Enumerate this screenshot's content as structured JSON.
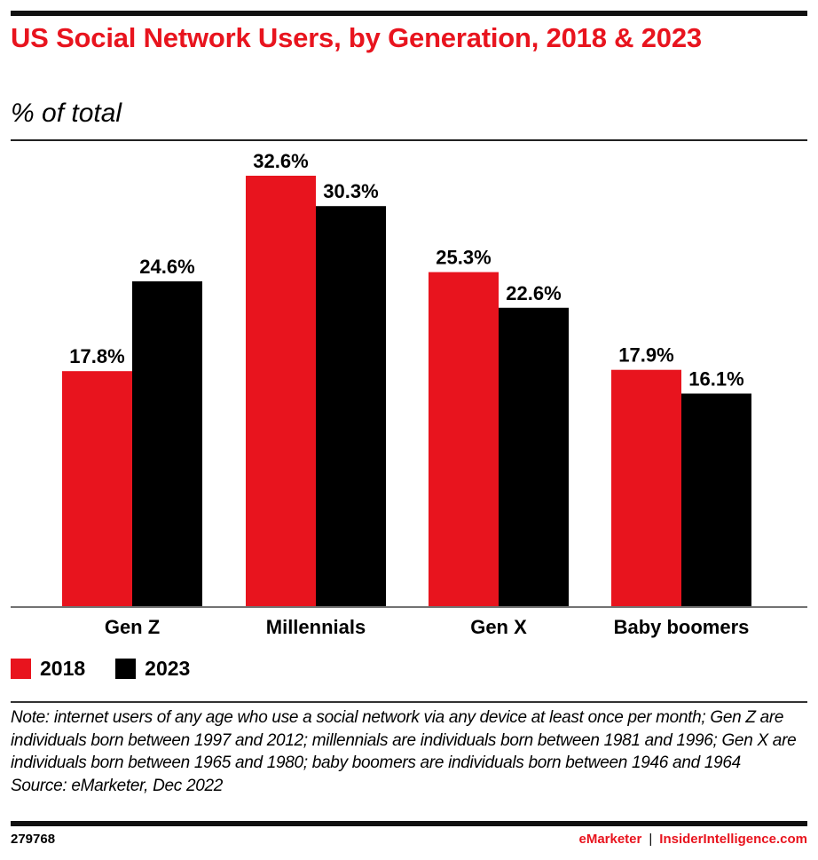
{
  "header": {
    "title": "US Social Network Users, by Generation, 2018 & 2023",
    "subtitle": "% of total"
  },
  "colors": {
    "series_2018": "#e8141e",
    "series_2023": "#000000",
    "title": "#e8141e"
  },
  "chart_data": {
    "type": "bar",
    "title": "US Social Network Users, by Generation, 2018 & 2023",
    "subtitle": "% of total",
    "xlabel": "",
    "ylabel": "",
    "ylim": [
      0,
      32.6
    ],
    "grid": false,
    "legend_position": "bottom-left",
    "categories": [
      "Gen Z",
      "Millennials",
      "Gen X",
      "Baby boomers"
    ],
    "series": [
      {
        "name": "2018",
        "color": "#e8141e",
        "values": [
          17.8,
          32.6,
          25.3,
          17.9
        ],
        "labels": [
          "17.8%",
          "32.6%",
          "25.3%",
          "17.9%"
        ]
      },
      {
        "name": "2023",
        "color": "#000000",
        "values": [
          24.6,
          30.3,
          22.6,
          16.1
        ],
        "labels": [
          "24.6%",
          "30.3%",
          "22.6%",
          "16.1%"
        ]
      }
    ]
  },
  "legend": [
    {
      "label": "2018",
      "color": "#e8141e"
    },
    {
      "label": "2023",
      "color": "#000000"
    }
  ],
  "footnote": {
    "note": "Note: internet users of any age who use a social network via any device at least once per month; Gen Z are individuals born between 1997 and 2012; millennials are individuals born between 1981 and 1996; Gen X are individuals born between 1965 and 1980; baby boomers are individuals born between 1946 and 1964",
    "source": "Source: eMarketer, Dec 2022"
  },
  "footer": {
    "chart_id": "279768",
    "brand": "eMarketer",
    "separator": "|",
    "site": "InsiderIntelligence.com"
  }
}
